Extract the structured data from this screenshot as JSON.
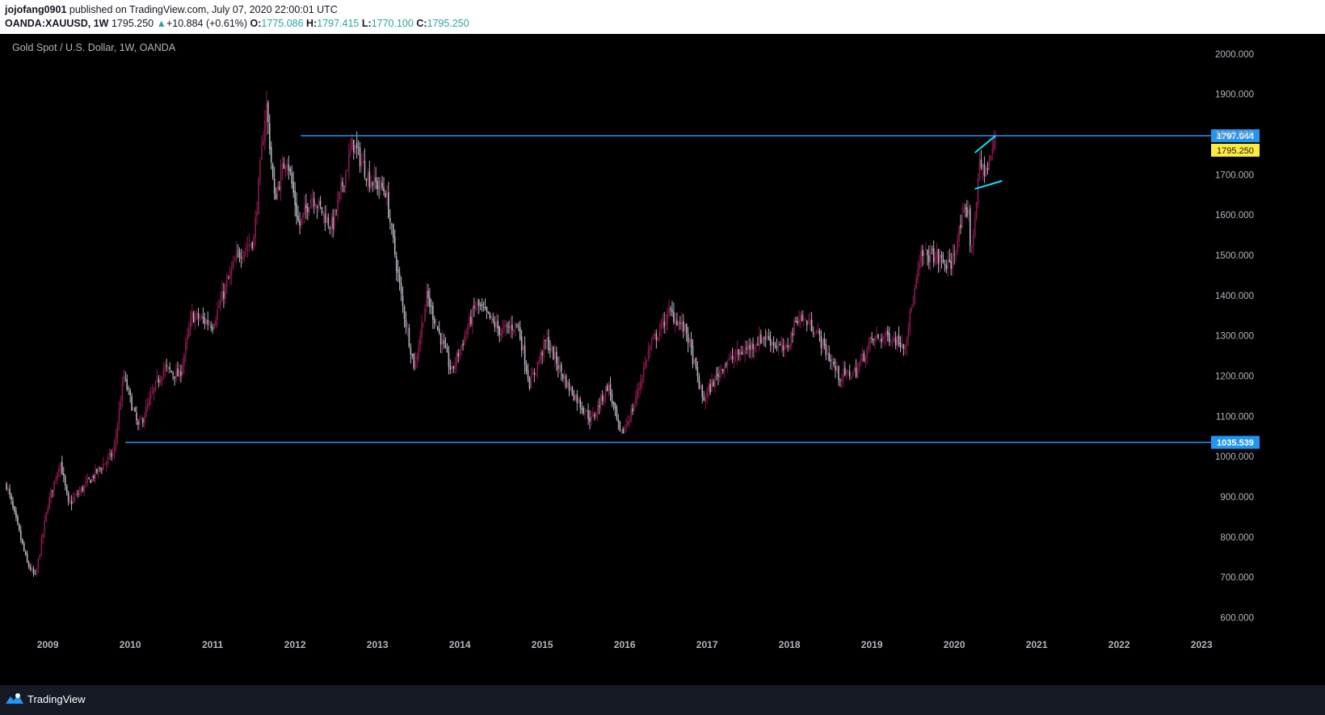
{
  "header": {
    "author": "jojofang0901",
    "published": "published on TradingView.com, July 07, 2020 22:00:01 UTC",
    "symbol": "OANDA:XAUUSD, 1W",
    "price": "1795.250",
    "change_arrow": "▲",
    "change": "+10.884 (+0.61%)",
    "o_label": "O:",
    "o_value": "1775.086",
    "h_label": "H:",
    "h_value": "1797.415",
    "l_label": "L:",
    "l_value": "1770.100",
    "c_label": "C:",
    "c_value": "1795.250"
  },
  "chart": {
    "title": "Gold Spot / U.S. Dollar, 1W, OANDA"
  },
  "footer": {
    "brand": "TradingView"
  },
  "colors": {
    "up": "#8b1a4e",
    "down": "#b2b5be",
    "hline": "#2196f3",
    "flag": "#00e5ff",
    "last_price_bg": "#ffeb3b",
    "axis_text": "#b2b5be"
  },
  "chart_data": {
    "type": "candlestick",
    "y_ticks": [
      "2000.000",
      "1900.000",
      "1800.000",
      "1700.000",
      "1600.000",
      "1500.000",
      "1400.000",
      "1300.000",
      "1200.000",
      "1100.000",
      "1000.000",
      "900.000",
      "800.000",
      "700.000",
      "600.000"
    ],
    "x_ticks": [
      "2009",
      "2010",
      "2011",
      "2012",
      "2013",
      "2014",
      "2015",
      "2016",
      "2017",
      "2018",
      "2019",
      "2020",
      "2021",
      "2022",
      "2023"
    ],
    "ylim": [
      565,
      2050
    ],
    "horizontal_lines": [
      {
        "value": 1797.044,
        "label": "1797.044",
        "from_date": "2012.07"
      },
      {
        "value": 1035.539,
        "label": "1035.539",
        "from_date": "2009.94"
      }
    ],
    "last_price": {
      "value": 1795.25,
      "label": "1795.250"
    },
    "flag_pattern": {
      "upper": [
        [
          2020.25,
          1755
        ],
        [
          2020.5,
          1797
        ]
      ],
      "lower": [
        [
          2020.25,
          1665
        ],
        [
          2020.58,
          1685
        ]
      ]
    },
    "price_path": [
      [
        2008.5,
        930
      ],
      [
        2008.75,
        735
      ],
      [
        2008.85,
        700
      ],
      [
        2009.0,
        880
      ],
      [
        2009.15,
        990
      ],
      [
        2009.25,
        880
      ],
      [
        2009.5,
        940
      ],
      [
        2009.8,
        1010
      ],
      [
        2009.92,
        1200
      ],
      [
        2010.1,
        1070
      ],
      [
        2010.4,
        1220
      ],
      [
        2010.6,
        1200
      ],
      [
        2010.75,
        1350
      ],
      [
        2011.0,
        1330
      ],
      [
        2011.3,
        1500
      ],
      [
        2011.5,
        1540
      ],
      [
        2011.65,
        1880
      ],
      [
        2011.75,
        1640
      ],
      [
        2011.9,
        1750
      ],
      [
        2012.05,
        1570
      ],
      [
        2012.2,
        1650
      ],
      [
        2012.45,
        1570
      ],
      [
        2012.7,
        1780
      ],
      [
        2012.9,
        1690
      ],
      [
        2013.1,
        1660
      ],
      [
        2013.3,
        1380
      ],
      [
        2013.45,
        1220
      ],
      [
        2013.6,
        1400
      ],
      [
        2013.9,
        1210
      ],
      [
        2014.2,
        1380
      ],
      [
        2014.5,
        1310
      ],
      [
        2014.7,
        1330
      ],
      [
        2014.85,
        1180
      ],
      [
        2015.05,
        1290
      ],
      [
        2015.3,
        1180
      ],
      [
        2015.6,
        1090
      ],
      [
        2015.8,
        1180
      ],
      [
        2015.95,
        1050
      ],
      [
        2016.1,
        1120
      ],
      [
        2016.3,
        1270
      ],
      [
        2016.55,
        1360
      ],
      [
        2016.75,
        1310
      ],
      [
        2016.95,
        1140
      ],
      [
        2017.2,
        1230
      ],
      [
        2017.5,
        1270
      ],
      [
        2017.7,
        1300
      ],
      [
        2017.95,
        1260
      ],
      [
        2018.1,
        1350
      ],
      [
        2018.3,
        1320
      ],
      [
        2018.6,
        1200
      ],
      [
        2018.8,
        1210
      ],
      [
        2019.0,
        1290
      ],
      [
        2019.2,
        1300
      ],
      [
        2019.4,
        1280
      ],
      [
        2019.6,
        1500
      ],
      [
        2019.75,
        1500
      ],
      [
        2019.95,
        1470
      ],
      [
        2020.1,
        1590
      ],
      [
        2020.18,
        1620
      ],
      [
        2020.2,
        1480
      ],
      [
        2020.3,
        1720
      ],
      [
        2020.4,
        1710
      ],
      [
        2020.5,
        1795
      ]
    ]
  }
}
